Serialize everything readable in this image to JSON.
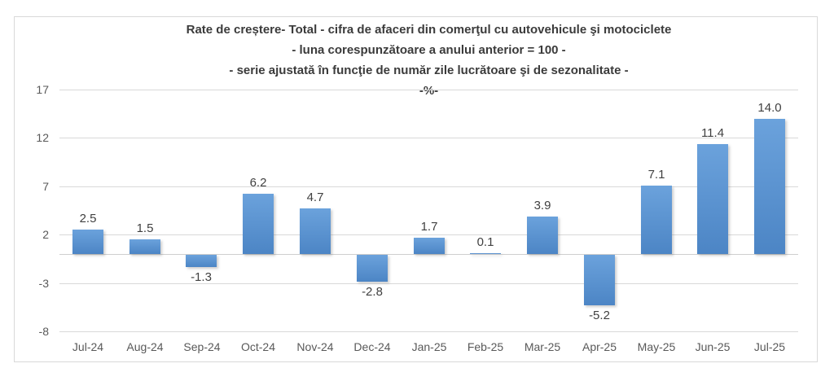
{
  "chart_data": {
    "type": "bar",
    "title": "Rate de creștere- Total - cifra de afaceri din comerţul cu autovehicule şi motociclete",
    "title_lines": [
      "Rate de creștere- Total - cifra de afaceri din comerţul cu autovehicule şi motociclete",
      "- luna corespunzătoare a anului anterior = 100 -",
      "- serie ajustată în funcţie de număr zile lucrătoare şi de sezonalitate -",
      "-%-"
    ],
    "categories": [
      "Jul-24",
      "Aug-24",
      "Sep-24",
      "Oct-24",
      "Nov-24",
      "Dec-24",
      "Jan-25",
      "Feb-25",
      "Mar-25",
      "Apr-25",
      "May-25",
      "Jun-25",
      "Jul-25"
    ],
    "values": [
      2.5,
      1.5,
      -1.3,
      6.2,
      4.7,
      -2.8,
      1.7,
      0.1,
      3.9,
      -5.2,
      7.1,
      11.4,
      14.0
    ],
    "xlabel": "",
    "ylabel": "",
    "ylim": [
      -8,
      17
    ],
    "yticks": [
      17,
      12,
      7,
      2,
      -3,
      -8
    ],
    "grid": true,
    "legend": false,
    "colors": {
      "bar": "#5B9BD5",
      "bar_gradient_top": "#6ba2dc",
      "bar_gradient_bottom": "#4c85c5",
      "gridline": "#d9d9d9",
      "axis_text": "#595959",
      "data_label": "#404040",
      "title_text": "#3b3b3b",
      "frame_border": "#d9d9d9",
      "background": "#ffffff"
    }
  }
}
